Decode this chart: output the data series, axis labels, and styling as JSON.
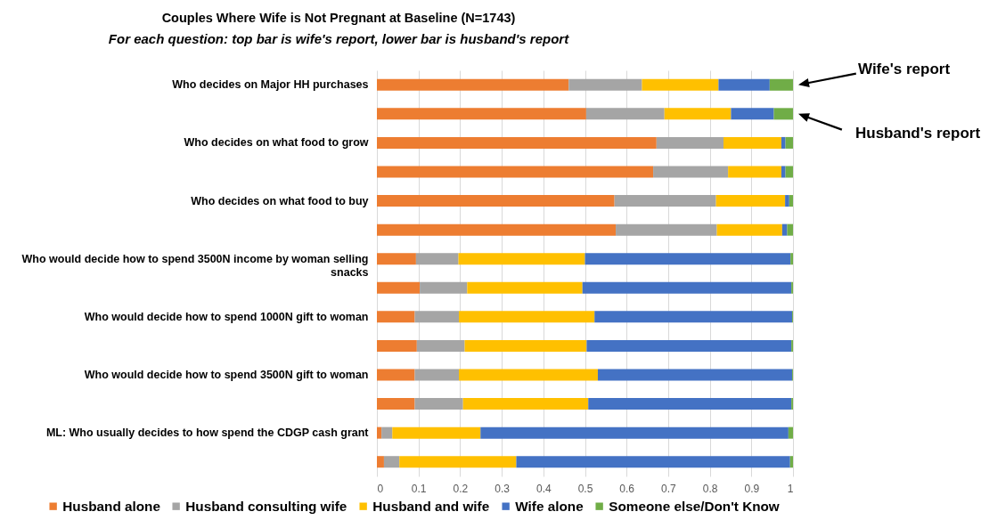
{
  "chart_data": {
    "type": "bar",
    "orientation": "horizontal",
    "stacked": true,
    "title": "Couples Where Wife is Not Pregnant at Baseline (N=1743)",
    "subtitle": "For each question: top bar is wife's report, lower bar is husband's report",
    "categories": [
      "Who decides on Major HH purchases",
      null,
      "Who decides on what food to grow",
      null,
      "Who decides on what food to buy",
      null,
      "Who would decide how to spend 3500N income by woman selling snacks",
      null,
      "Who would decide how to spend 1000N gift to woman",
      null,
      "Who would decide how to spend 3500N gift to woman",
      null,
      "ML: Who usually decides to how spend the CDGP cash grant",
      null
    ],
    "series": [
      {
        "name": "Husband alone",
        "color": "#ed7d31",
        "values": [
          0.461,
          0.503,
          0.672,
          0.664,
          0.571,
          0.574,
          0.094,
          0.103,
          0.091,
          0.096,
          0.091,
          0.091,
          0.011,
          0.017
        ]
      },
      {
        "name": "Husband consulting wife",
        "color": "#a5a5a5",
        "values": [
          0.176,
          0.188,
          0.161,
          0.18,
          0.244,
          0.243,
          0.102,
          0.114,
          0.106,
          0.115,
          0.106,
          0.116,
          0.026,
          0.037
        ]
      },
      {
        "name": "Husband and wife",
        "color": "#ffc000",
        "values": [
          0.184,
          0.16,
          0.139,
          0.128,
          0.166,
          0.157,
          0.304,
          0.277,
          0.326,
          0.293,
          0.334,
          0.301,
          0.212,
          0.281
        ]
      },
      {
        "name": "Wife alone",
        "color": "#4472c4",
        "values": [
          0.123,
          0.103,
          0.01,
          0.01,
          0.01,
          0.012,
          0.494,
          0.502,
          0.475,
          0.492,
          0.467,
          0.488,
          0.74,
          0.658
        ]
      },
      {
        "name": "Someone else/Don't Know",
        "color": "#70ad47",
        "values": [
          0.056,
          0.046,
          0.018,
          0.018,
          0.009,
          0.014,
          0.006,
          0.004,
          0.002,
          0.004,
          0.002,
          0.004,
          0.011,
          0.007
        ]
      }
    ],
    "xlim": [
      0,
      1
    ],
    "xticks": [
      0,
      0.1,
      0.2,
      0.3,
      0.4,
      0.5,
      0.6,
      0.7,
      0.8,
      0.9,
      1
    ],
    "grid": "x",
    "legend": "bottom",
    "annotations": [
      "Wife's report",
      "Husband's report"
    ]
  }
}
